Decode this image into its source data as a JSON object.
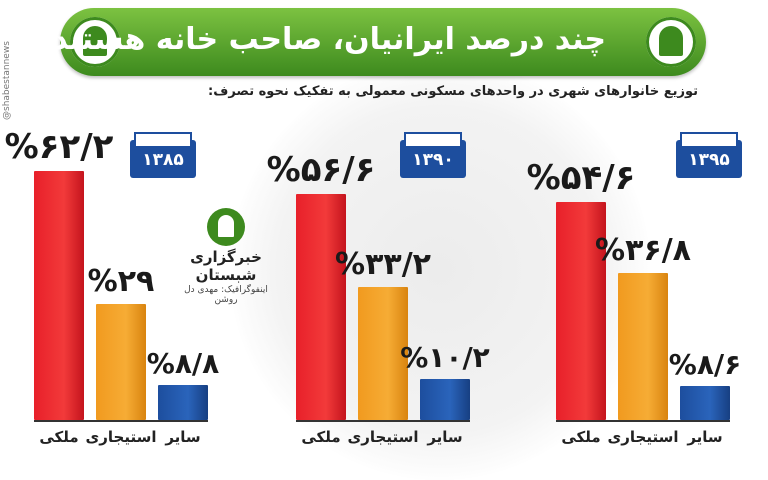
{
  "header": {
    "title": "چند درصد ایرانیان، صاحب خانه هستند؟",
    "subtitle": "توزیع خانوارهای شهری در واحدهای مسکونی معمولی به تفکیک نحوه تصرف:"
  },
  "side_credit": "@shabestannews",
  "logo": {
    "name": "خبرگزاری شبستان",
    "credit": "اینفوگرافیک: مهدی دل روشن"
  },
  "colors": {
    "banner": "#5aa532",
    "owned": "#e8202a",
    "rented": "#f19a1f",
    "other": "#1d4e9e"
  },
  "chart_data": [
    {
      "type": "bar",
      "year_label": "۱۳۸۵",
      "categories": [
        "ملکی",
        "استیجاری",
        "سایر"
      ],
      "values": [
        62.2,
        29,
        8.8
      ],
      "value_labels": [
        "%۶۲/۲",
        "%۲۹",
        "%۸/۸"
      ]
    },
    {
      "type": "bar",
      "year_label": "۱۳۹۰",
      "categories": [
        "ملکی",
        "استیجاری",
        "سایر"
      ],
      "values": [
        56.6,
        33.2,
        10.2
      ],
      "value_labels": [
        "%۵۶/۶",
        "%۳۳/۲",
        "%۱۰/۲"
      ]
    },
    {
      "type": "bar",
      "year_label": "۱۳۹۵",
      "categories": [
        "ملکی",
        "استیجاری",
        "سایر"
      ],
      "values": [
        54.6,
        36.8,
        8.6
      ],
      "value_labels": [
        "%۵۴/۶",
        "%۳۶/۸",
        "%۸/۶"
      ]
    }
  ]
}
